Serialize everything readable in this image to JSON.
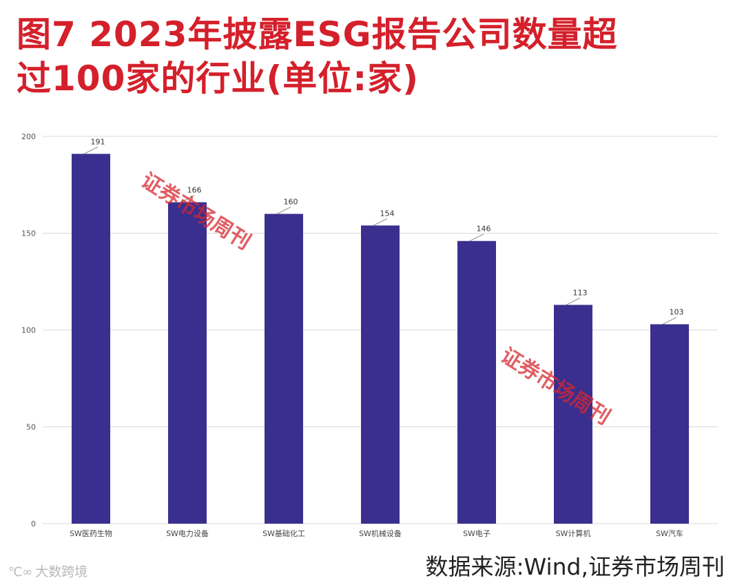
{
  "header": {
    "title_line1": "图7  2023年披露ESG报告公司数量超",
    "title_line2": "过100家的行业(单位:家)"
  },
  "chart_data": {
    "type": "bar",
    "title": "图7 2023年披露ESG报告公司数量超过100家的行业(单位:家)",
    "categories": [
      "SW医药生物",
      "SW电力设备",
      "SW基础化工",
      "SW机械设备",
      "SW电子",
      "SW计算机",
      "SW汽车"
    ],
    "values": [
      191,
      166,
      160,
      154,
      146,
      113,
      103
    ],
    "ylim": [
      0,
      200
    ],
    "yticks": [
      0,
      50,
      100,
      150,
      200
    ],
    "xlabel": "",
    "ylabel": "",
    "grid": true,
    "bar_color": "#3a2f8e"
  },
  "footer": {
    "source": "数据来源:Wind,证券市场周刊",
    "logo_mark": "℃∞",
    "logo_text": "大数跨境"
  },
  "watermark": {
    "text": "证券市场周刊"
  },
  "colors": {
    "title": "#d4202b",
    "bar": "#3a2f8e",
    "grid": "#d9d9d9"
  }
}
